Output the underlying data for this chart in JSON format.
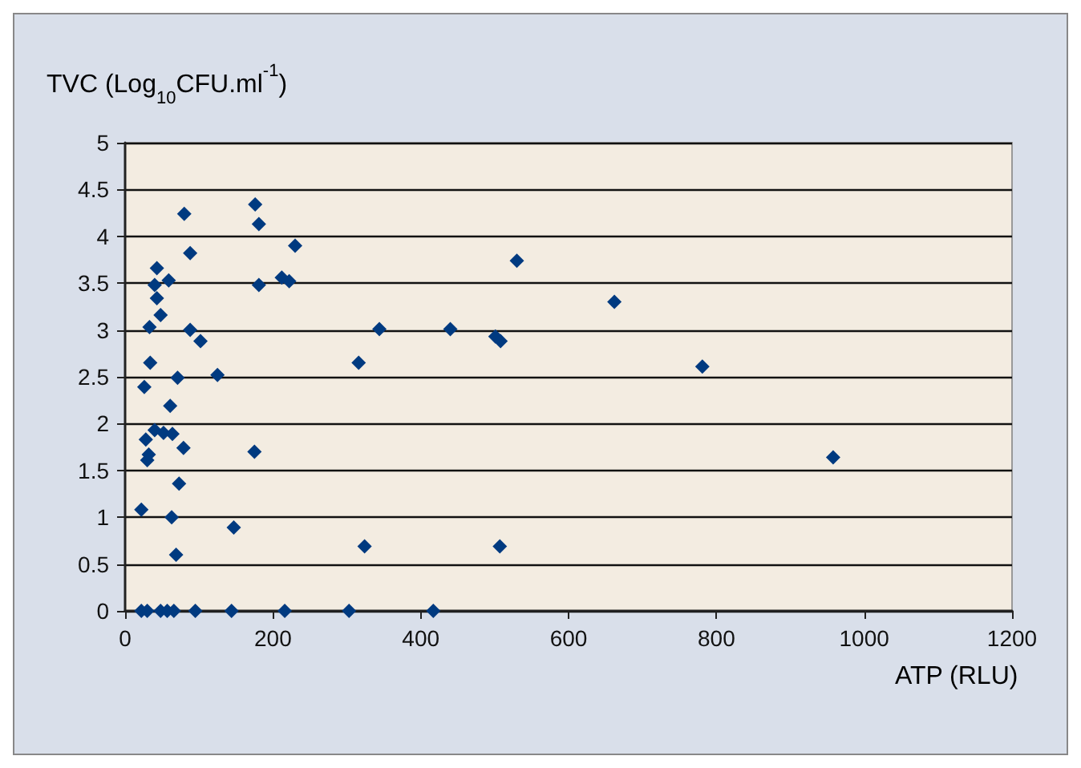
{
  "chart_data": {
    "type": "scatter",
    "xlabel": "ATP (RLU)",
    "ylabel": "TVC (Log$_{10}$CFU.ml$^{-1}$)",
    "x": [
      80,
      176,
      181,
      230,
      88,
      43,
      40,
      59,
      181,
      212,
      222,
      43,
      48,
      33,
      88,
      102,
      344,
      316,
      34,
      26,
      71,
      125,
      61,
      28,
      40,
      52,
      64,
      32,
      30,
      79,
      175,
      73,
      22,
      63,
      147,
      69,
      324,
      530,
      440,
      501,
      508,
      662,
      781,
      958,
      507,
      22,
      30,
      48,
      57,
      66,
      95,
      144,
      216,
      303,
      417
    ],
    "series": [
      {
        "color": "#003a80",
        "values": [
          4.24,
          4.34,
          4.13,
          3.9,
          3.82,
          3.66,
          3.48,
          3.53,
          3.48,
          3.56,
          3.52,
          3.34,
          3.16,
          3.03,
          3.0,
          2.88,
          3.01,
          2.65,
          2.65,
          2.39,
          2.49,
          2.52,
          2.19,
          1.83,
          1.93,
          1.9,
          1.89,
          1.67,
          1.61,
          1.74,
          1.7,
          1.36,
          1.08,
          1.0,
          0.89,
          0.6,
          0.69,
          3.74,
          3.01,
          2.93,
          2.88,
          3.3,
          2.61,
          1.64,
          0.69,
          0,
          0,
          0,
          0,
          0,
          0,
          0,
          0,
          0,
          0
        ]
      }
    ],
    "xlim": [
      0,
      1200
    ],
    "xticks": [
      0,
      200,
      400,
      600,
      800,
      1000,
      1200
    ],
    "ylim": [
      0,
      5
    ],
    "yticks": [
      0,
      0.5,
      1,
      1.5,
      2,
      2.5,
      3,
      3.5,
      4,
      4.5,
      5
    ],
    "grid": "y",
    "marker": "diamond"
  }
}
